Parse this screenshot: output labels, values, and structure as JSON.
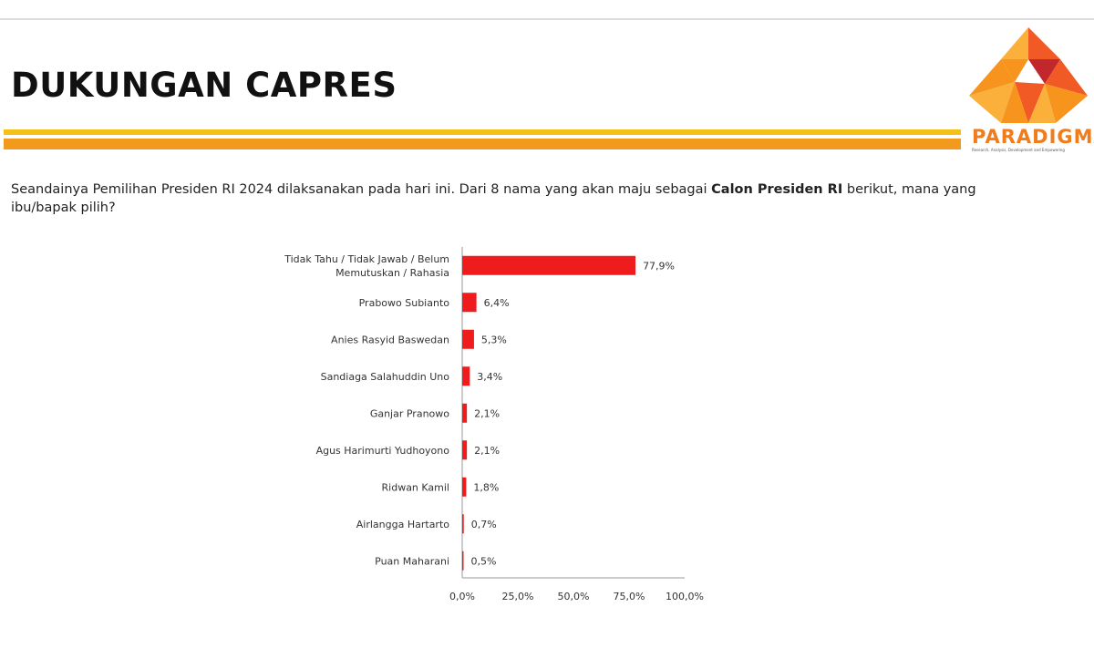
{
  "header": {
    "title": "DUKUNGAN CAPRES",
    "logo": {
      "wordmark": "PARADIGMA",
      "tagline": "Research, Analysis, Development and Empowering",
      "colors": [
        "#f7941d",
        "#f15a24",
        "#fbb03b",
        "#c1272d"
      ]
    }
  },
  "question": {
    "before": "Seandainya Pemilihan Presiden RI 2024 dilaksanakan pada hari ini. Dari 8 nama yang akan maju sebagai ",
    "bold": "Calon Presiden RI",
    "after": " berikut, mana yang ibu/bapak pilih?"
  },
  "chart_data": {
    "type": "bar",
    "orientation": "horizontal",
    "categories": [
      "Tidak Tahu / Tidak Jawab / Belum Memutuskan / Rahasia",
      "Prabowo Subianto",
      "Anies Rasyid Baswedan",
      "Sandiaga Salahuddin Uno",
      "Ganjar Pranowo",
      "Agus Harimurti Yudhoyono",
      "Ridwan Kamil",
      "Airlangga Hartarto",
      "Puan Maharani"
    ],
    "category_lines": [
      [
        "Tidak Tahu / Tidak Jawab / Belum",
        "Memutuskan / Rahasia"
      ],
      [
        "Prabowo Subianto"
      ],
      [
        "Anies Rasyid Baswedan"
      ],
      [
        "Sandiaga Salahuddin Uno"
      ],
      [
        "Ganjar Pranowo"
      ],
      [
        "Agus Harimurti Yudhoyono"
      ],
      [
        "Ridwan Kamil"
      ],
      [
        "Airlangga Hartarto"
      ],
      [
        "Puan Maharani"
      ]
    ],
    "values": [
      77.9,
      6.4,
      5.3,
      3.4,
      2.1,
      2.1,
      1.8,
      0.7,
      0.5
    ],
    "value_labels": [
      "77,9%",
      "6,4%",
      "5,3%",
      "3,4%",
      "2,1%",
      "2,1%",
      "1,8%",
      "0,7%",
      "0,5%"
    ],
    "xlim": [
      0,
      100
    ],
    "xticks": [
      0,
      25,
      50,
      75,
      100
    ],
    "xtick_labels": [
      "0,0%",
      "25,0%",
      "50,0%",
      "75,0%",
      "100,0%"
    ],
    "bar_color": "#ee1c1c",
    "grid": false,
    "legend": "none"
  }
}
